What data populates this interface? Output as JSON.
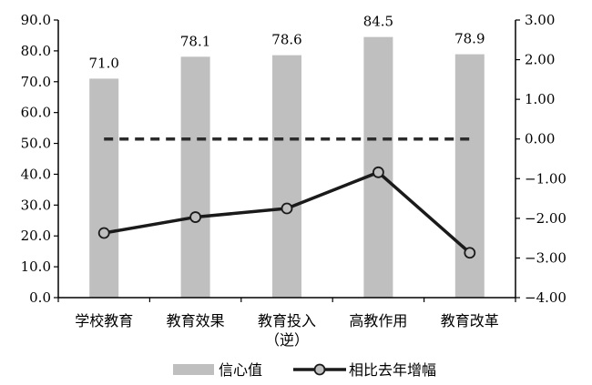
{
  "chart_data": {
    "type": "bar",
    "categories": [
      "学校教育",
      "教育效果",
      "教育投入\n（逆）",
      "高教作用",
      "教育改革"
    ],
    "series": [
      {
        "name": "信心值",
        "type": "bar",
        "axis": "left",
        "values": [
          71.0,
          78.1,
          78.6,
          84.5,
          78.9
        ],
        "labels": [
          "71.0",
          "78.1",
          "78.6",
          "84.5",
          "78.9"
        ],
        "color": "#bfbfbf"
      },
      {
        "name": "相比去年增幅",
        "type": "line",
        "axis": "right",
        "values": [
          -2.37,
          -1.97,
          -1.75,
          -0.84,
          -2.87
        ],
        "color": "#1a1a1a"
      }
    ],
    "reference_line": {
      "axis": "right",
      "value": 0.0,
      "style": "dashed",
      "color": "#2b2b2b"
    },
    "y_left": {
      "range": [
        0,
        90
      ],
      "ticks": [
        0,
        10,
        20,
        30,
        40,
        50,
        60,
        70,
        80,
        90
      ],
      "tick_labels": [
        "0.0",
        "10.0",
        "20.0",
        "30.0",
        "40.0",
        "50.0",
        "60.0",
        "70.0",
        "80.0",
        "90.0"
      ]
    },
    "y_right": {
      "range": [
        -4,
        3
      ],
      "ticks": [
        -4,
        -3,
        -2,
        -1,
        0,
        1,
        2,
        3
      ],
      "tick_labels": [
        "−4.00",
        "−3.00",
        "−2.00",
        "−1.00",
        "0.00",
        "1.00",
        "2.00",
        "3.00"
      ]
    },
    "grid": false,
    "legend_position": "bottom-center",
    "title": "",
    "xlabel": "",
    "ylabel": ""
  }
}
